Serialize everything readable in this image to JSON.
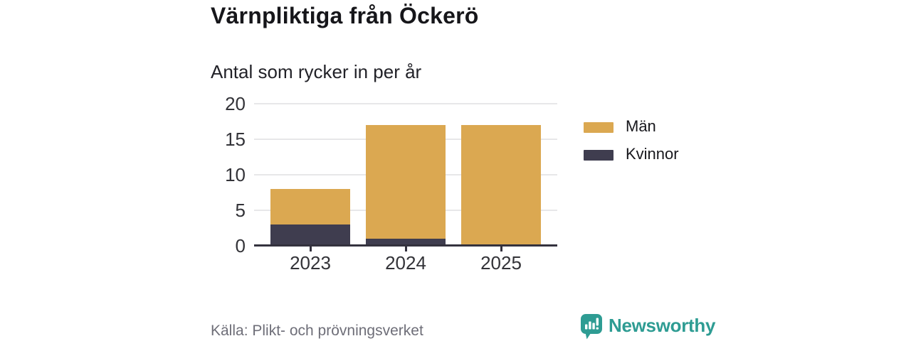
{
  "header": {
    "title": "Värnpliktiga från Öckerö",
    "subtitle": "Antal som rycker in per år"
  },
  "chart_data": {
    "type": "bar",
    "stacked": true,
    "title": "Värnpliktiga från Öckerö",
    "subtitle": "Antal som rycker in per år",
    "categories": [
      "2023",
      "2024",
      "2025"
    ],
    "series": [
      {
        "name": "Män",
        "color": "#DBA851",
        "values": [
          5,
          16,
          17
        ]
      },
      {
        "name": "Kvinnor",
        "color": "#3F3D4F",
        "values": [
          3,
          1,
          0
        ]
      }
    ],
    "stack_order_bottom_to_top": [
      "Kvinnor",
      "Män"
    ],
    "totals": [
      8,
      17,
      17
    ],
    "xlabel": "",
    "ylabel": "",
    "ylim": [
      0,
      20
    ],
    "yticks": [
      0,
      5,
      10,
      15,
      20
    ],
    "grid": true,
    "legend_position": "right"
  },
  "footer": {
    "source": "Källa: Plikt- och prövningsverket",
    "brand": "Newsworthy"
  },
  "colors": {
    "men": "#DBA851",
    "women": "#3F3D4F",
    "axis": "#34323e",
    "grid": "#e7e7e9",
    "tick_text": "#333338",
    "source_text": "#6e6e78",
    "brand_teal": "#2e9c93",
    "background": "#ffffff"
  }
}
